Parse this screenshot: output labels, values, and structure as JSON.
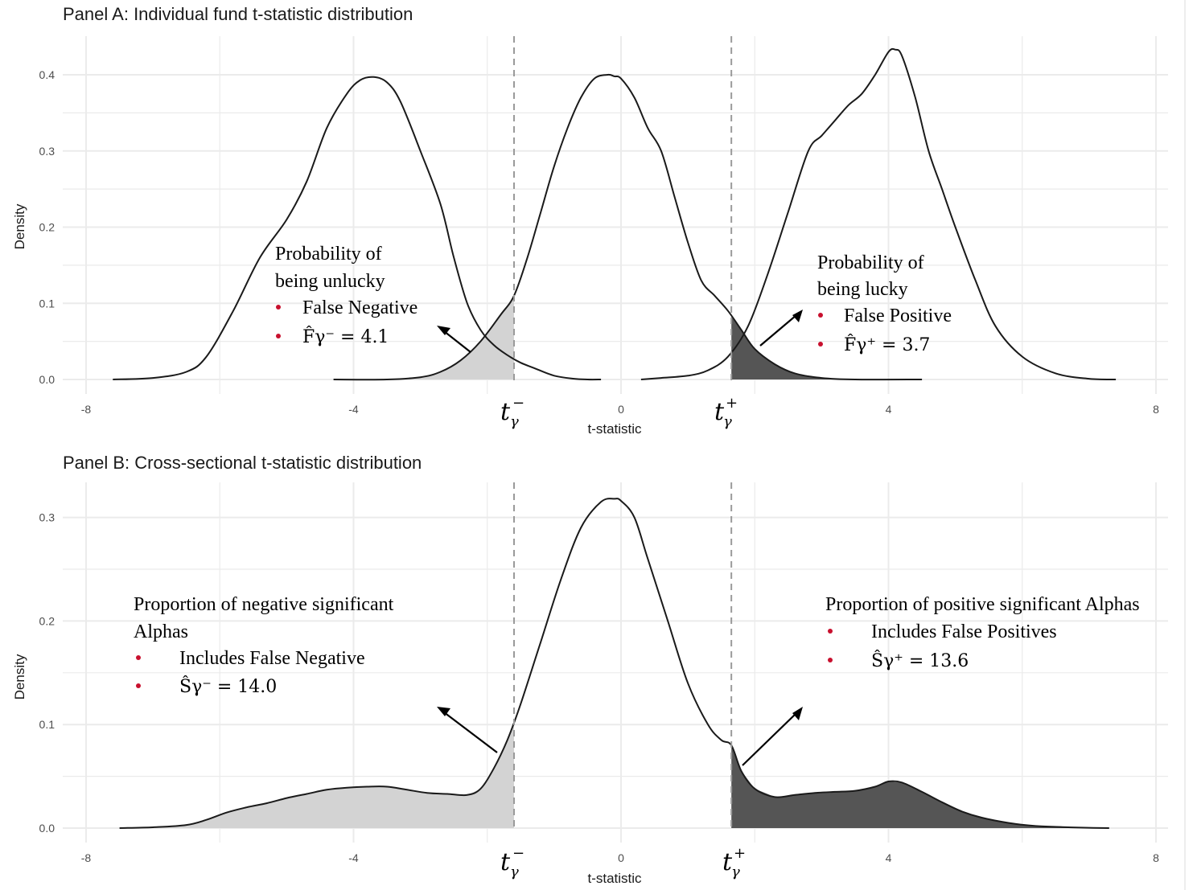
{
  "chart_data": [
    {
      "type": "area",
      "title": "Panel A: Individual fund t-statistic distribution",
      "xlabel": "t-statistic",
      "ylabel": "Density",
      "xlim": [
        -8,
        8
      ],
      "ylim": [
        0,
        0.44
      ],
      "x_ticks": [
        "-8",
        "-4",
        "0",
        "4",
        "8"
      ],
      "y_ticks": [
        "0.0",
        "0.1",
        "0.2",
        "0.3",
        "0.4"
      ],
      "y_tick_values": [
        0,
        0.1,
        0.2,
        0.3,
        0.4
      ],
      "grid": true,
      "thresholds": {
        "t_minus": -1.6,
        "t_plus": 1.65,
        "t_minus_label": "t_γ^−",
        "t_plus_label": "t_γ^+"
      },
      "series": [
        {
          "name": "left",
          "x": [
            -7.6,
            -7.0,
            -6.5,
            -6.2,
            -5.8,
            -5.4,
            -5.0,
            -4.7,
            -4.4,
            -4.1,
            -3.9,
            -3.7,
            -3.5,
            -3.3,
            -3.0,
            -2.7,
            -2.5,
            -2.3,
            -2.1,
            -1.9,
            -1.7,
            -1.5,
            -1.3,
            -1.0,
            -0.7,
            -0.5,
            -0.3
          ],
          "y": [
            0.0,
            0.002,
            0.01,
            0.03,
            0.09,
            0.16,
            0.21,
            0.26,
            0.33,
            0.375,
            0.393,
            0.397,
            0.39,
            0.365,
            0.3,
            0.23,
            0.16,
            0.1,
            0.065,
            0.045,
            0.032,
            0.022,
            0.015,
            0.005,
            0.001,
            0.0,
            0.0
          ]
        },
        {
          "name": "null",
          "x": [
            -4.3,
            -3.5,
            -3.0,
            -2.7,
            -2.4,
            -2.1,
            -1.8,
            -1.6,
            -1.4,
            -1.2,
            -1.0,
            -0.8,
            -0.6,
            -0.4,
            -0.2,
            -0.1,
            0.0,
            0.2,
            0.4,
            0.6,
            0.8,
            1.0,
            1.2,
            1.4,
            1.6,
            1.8,
            2.0,
            2.3,
            2.6,
            3.0,
            3.5,
            4.5
          ],
          "y": [
            0.0,
            0.0,
            0.003,
            0.01,
            0.025,
            0.05,
            0.085,
            0.11,
            0.16,
            0.22,
            0.28,
            0.33,
            0.37,
            0.395,
            0.4,
            0.398,
            0.395,
            0.37,
            0.33,
            0.3,
            0.24,
            0.18,
            0.13,
            0.11,
            0.09,
            0.065,
            0.04,
            0.02,
            0.008,
            0.002,
            0.0,
            0.0
          ]
        },
        {
          "name": "right",
          "x": [
            0.3,
            0.6,
            1.0,
            1.3,
            1.6,
            1.9,
            2.2,
            2.5,
            2.8,
            3.0,
            3.2,
            3.4,
            3.6,
            3.8,
            4.0,
            4.1,
            4.2,
            4.4,
            4.6,
            4.8,
            5.0,
            5.3,
            5.6,
            6.0,
            6.5,
            7.0,
            7.4
          ],
          "y": [
            0.0,
            0.002,
            0.005,
            0.012,
            0.03,
            0.07,
            0.14,
            0.22,
            0.3,
            0.32,
            0.34,
            0.36,
            0.375,
            0.4,
            0.43,
            0.433,
            0.425,
            0.37,
            0.3,
            0.25,
            0.2,
            0.13,
            0.07,
            0.03,
            0.008,
            0.001,
            0.0
          ]
        }
      ],
      "annotations": [
        {
          "title_lines": [
            "Probability of",
            "being unlucky"
          ],
          "bullets": [
            "False Negative",
            "F̂γ⁻ = 4.1"
          ]
        },
        {
          "title_lines": [
            "Probability of",
            "being lucky"
          ],
          "bullets": [
            "False Positive",
            "F̂γ⁺ = 3.7"
          ]
        }
      ]
    },
    {
      "type": "area",
      "title": "Panel B: Cross-sectional t-statistic distribution",
      "xlabel": "t-statistic",
      "ylabel": "Density",
      "xlim": [
        -8,
        8
      ],
      "ylim": [
        0,
        0.33
      ],
      "x_ticks": [
        "-8",
        "-4",
        "0",
        "4",
        "8"
      ],
      "y_ticks": [
        "0.0",
        "0.1",
        "0.2",
        "0.3"
      ],
      "y_tick_values": [
        0,
        0.1,
        0.2,
        0.3
      ],
      "grid": true,
      "thresholds": {
        "t_minus": -1.6,
        "t_plus": 1.65,
        "t_minus_label": "t_γ^−",
        "t_plus_label": "t_γ^+"
      },
      "series": [
        {
          "name": "cross-section",
          "x": [
            -7.5,
            -7.0,
            -6.5,
            -6.2,
            -5.9,
            -5.6,
            -5.3,
            -5.0,
            -4.7,
            -4.4,
            -4.1,
            -3.8,
            -3.5,
            -3.2,
            -2.9,
            -2.6,
            -2.3,
            -2.1,
            -1.9,
            -1.7,
            -1.5,
            -1.2,
            -0.9,
            -0.6,
            -0.3,
            -0.1,
            0.0,
            0.2,
            0.4,
            0.7,
            1.0,
            1.3,
            1.5,
            1.65,
            1.8,
            2.0,
            2.3,
            2.6,
            2.9,
            3.2,
            3.5,
            3.8,
            4.0,
            4.2,
            4.5,
            4.8,
            5.1,
            5.4,
            5.8,
            6.2,
            6.6,
            7.0,
            7.3
          ],
          "y": [
            0.0,
            0.0008,
            0.003,
            0.008,
            0.015,
            0.02,
            0.024,
            0.029,
            0.033,
            0.037,
            0.039,
            0.04,
            0.04,
            0.037,
            0.034,
            0.033,
            0.032,
            0.038,
            0.058,
            0.085,
            0.12,
            0.18,
            0.24,
            0.29,
            0.315,
            0.318,
            0.316,
            0.3,
            0.26,
            0.2,
            0.14,
            0.1,
            0.085,
            0.08,
            0.055,
            0.038,
            0.03,
            0.032,
            0.034,
            0.035,
            0.036,
            0.04,
            0.045,
            0.044,
            0.035,
            0.025,
            0.016,
            0.01,
            0.005,
            0.002,
            0.001,
            0.0003,
            0.0
          ]
        }
      ],
      "annotations": [
        {
          "title_lines": [
            "Proportion of negative significant",
            "Alphas"
          ],
          "bullets": [
            "Includes False Negative",
            "Ŝγ⁻ = 14.0"
          ]
        },
        {
          "title_lines": [
            "Proportion of positive significant Alphas"
          ],
          "bullets": [
            "Includes False Positives",
            "Ŝγ⁺ = 13.6"
          ]
        }
      ]
    }
  ],
  "colors": {
    "grid": "#ebebeb",
    "curve": "#1a1a1a",
    "fill_left": "#d3d3d3",
    "fill_right": "#555555",
    "dashed": "#9a9a9a",
    "bullet": "#c8102e",
    "tick_text": "#4d4d4d"
  }
}
